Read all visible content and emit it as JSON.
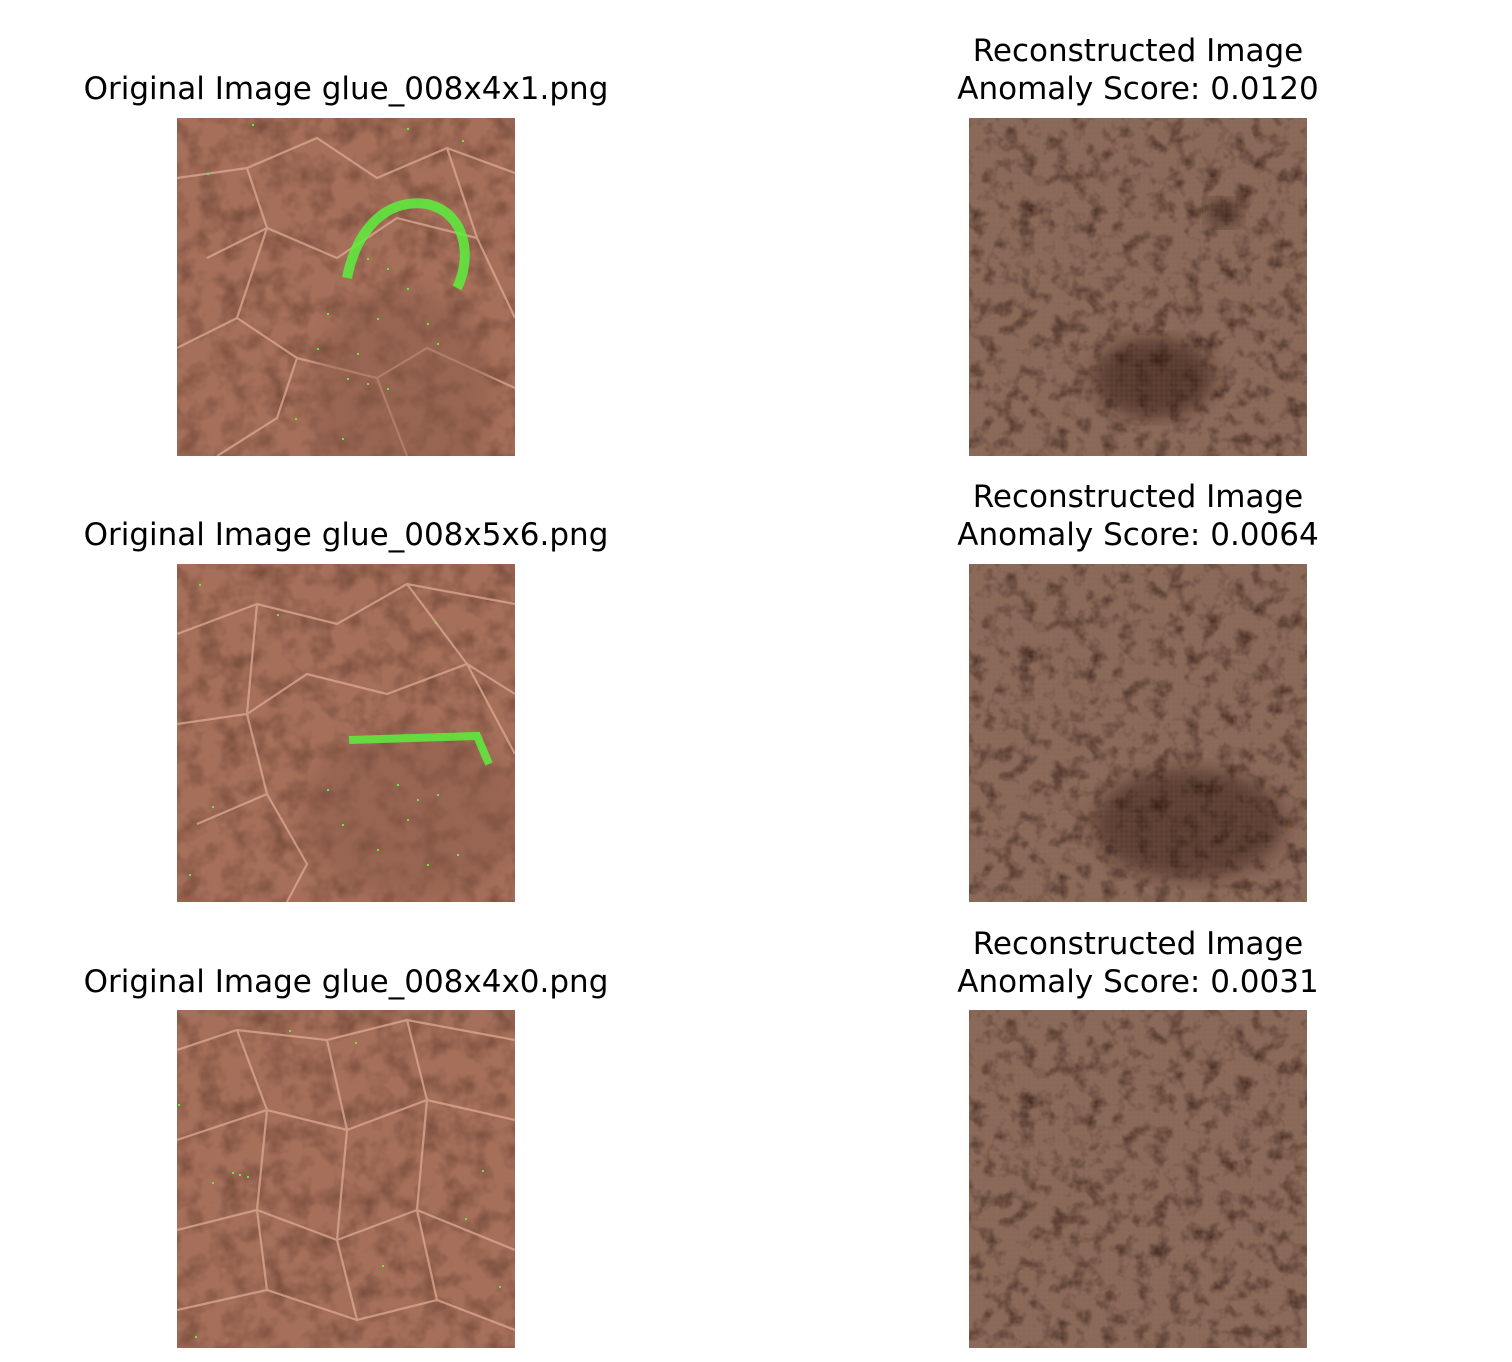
{
  "colors": {
    "leather_base": "#a16e5a",
    "leather_recon": "#8a6858",
    "highlight": "#5cf03c"
  },
  "rows": [
    {
      "original_title": "Original Image glue_008x4x1.png",
      "recon_title_line1": "Reconstructed Image",
      "recon_title_line2": "Anomaly Score: 0.0120"
    },
    {
      "original_title": "Original Image glue_008x5x6.png",
      "recon_title_line1": "Reconstructed Image",
      "recon_title_line2": "Anomaly Score: 0.0064"
    },
    {
      "original_title": "Original Image glue_008x4x0.png",
      "recon_title_line1": "Reconstructed Image",
      "recon_title_line2": "Anomaly Score: 0.0031"
    }
  ]
}
